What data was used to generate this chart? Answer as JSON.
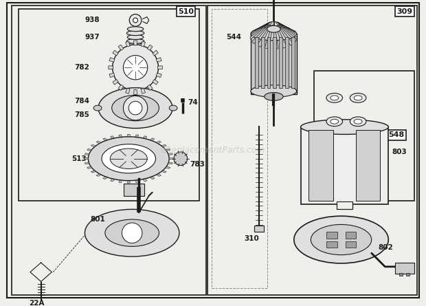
{
  "bg_color": "#f0efea",
  "line_color": "#1a1a1a",
  "watermark": "eReplacementParts.com",
  "figsize": [
    6.2,
    4.45
  ],
  "dpi": 100,
  "label_fontsize": 7.5,
  "label_fontweight": "bold",
  "label_font": "DejaVu Sans"
}
